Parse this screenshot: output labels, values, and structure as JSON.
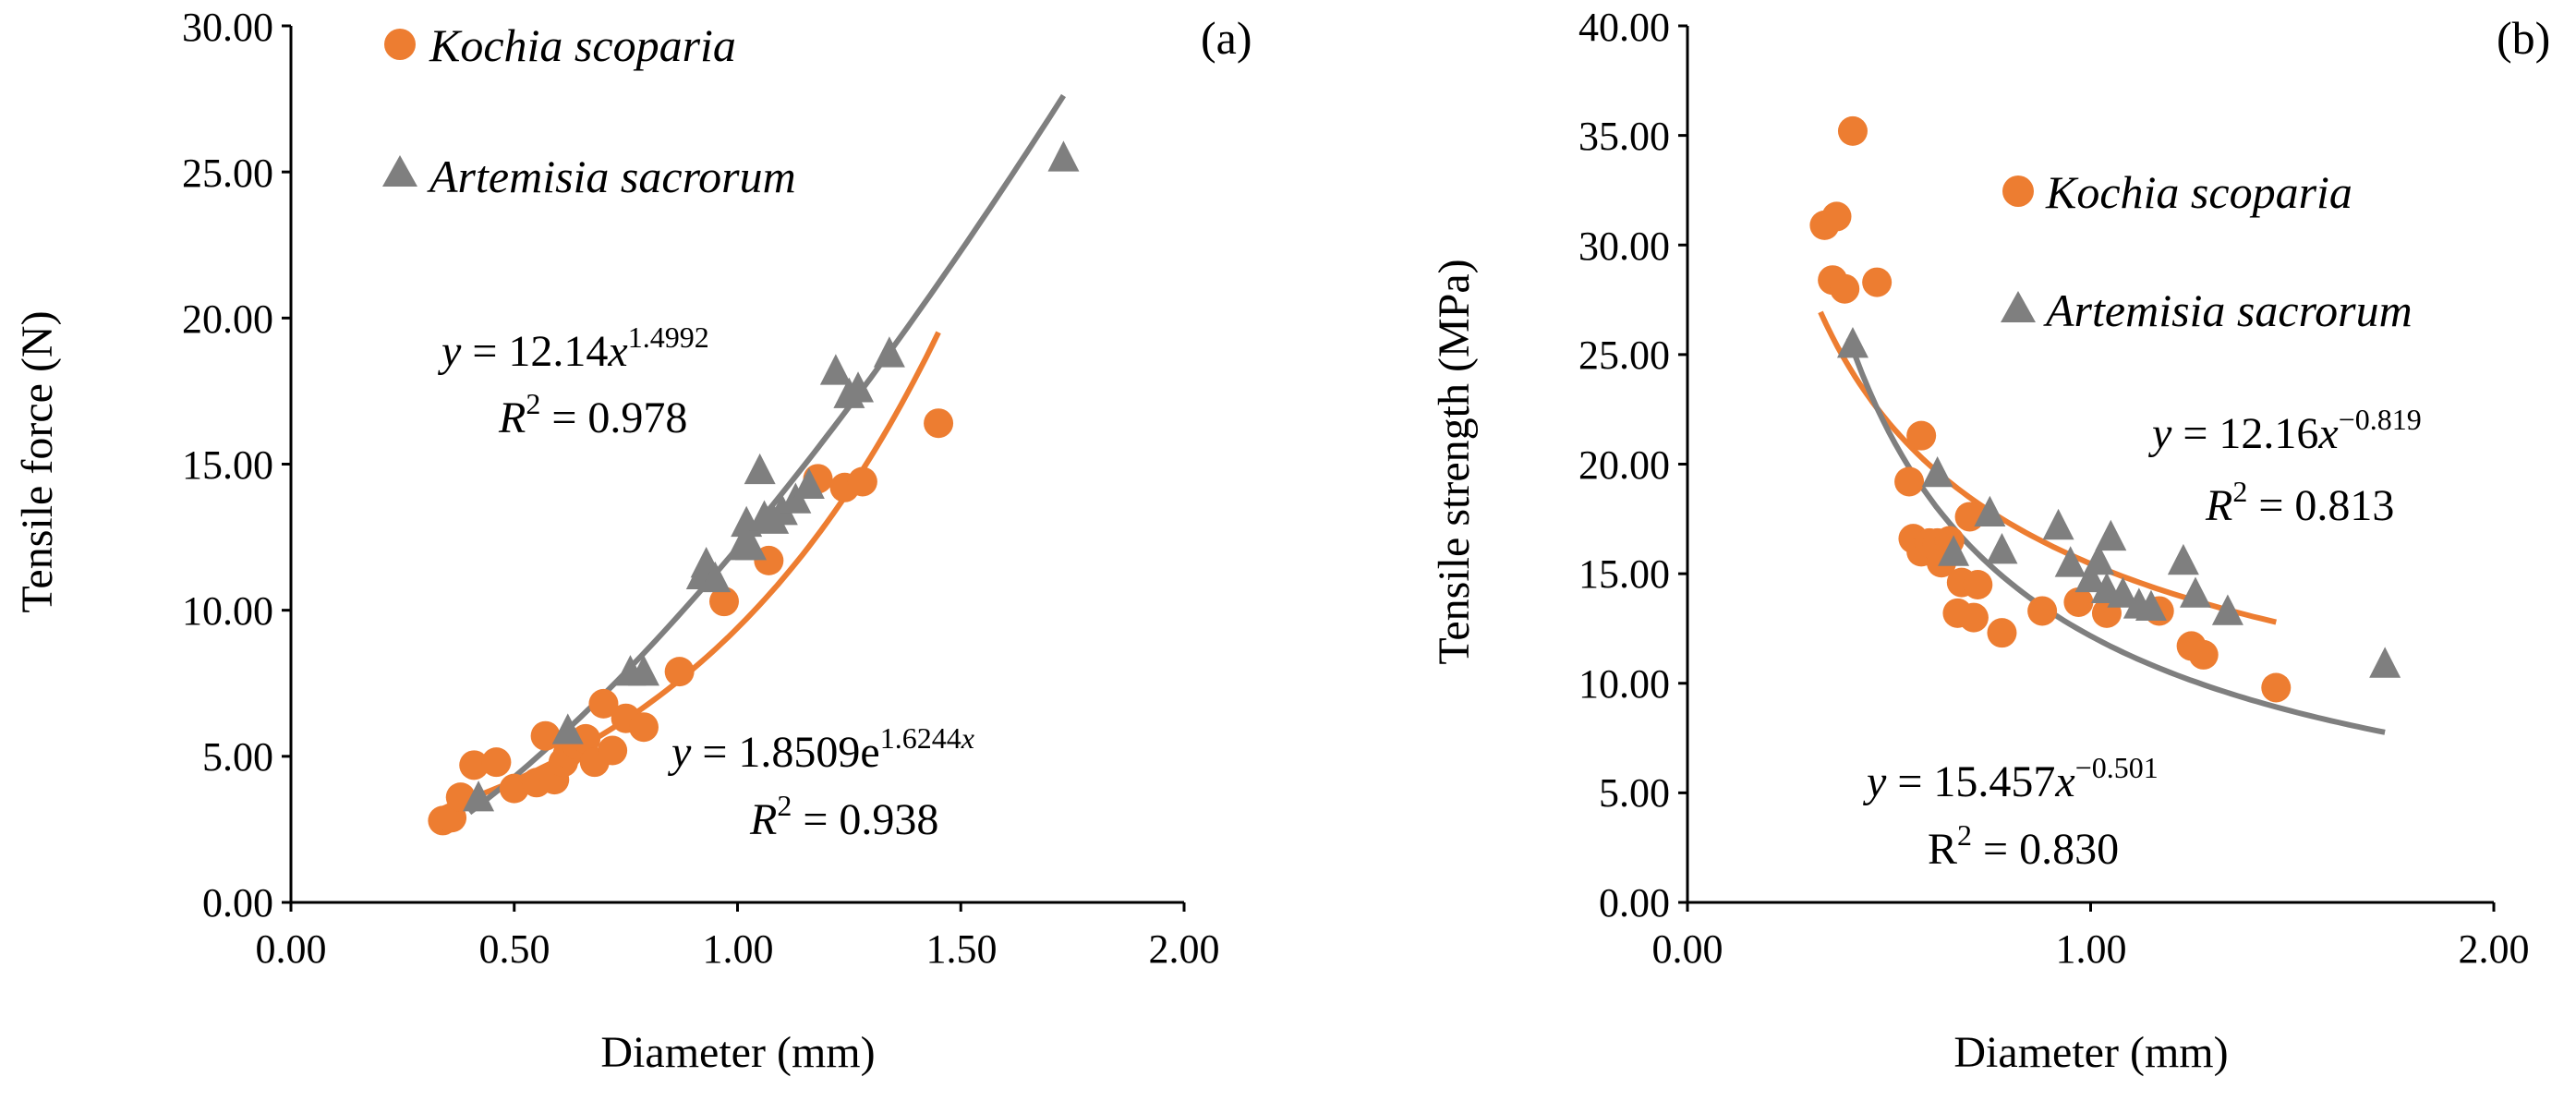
{
  "colors": {
    "orange": "#ED7D31",
    "gray": "#7F7F7F",
    "axis": "#000000",
    "background": "#FFFFFF"
  },
  "chart_data": [
    {
      "type": "scatter",
      "panel_label": "(a)",
      "xlabel": "Diameter (mm)",
      "ylabel": "Tensile force (N)",
      "xlim": [
        0,
        2
      ],
      "ylim": [
        0,
        30
      ],
      "xticks": [
        "0.00",
        "0.50",
        "1.00",
        "1.50",
        "2.00"
      ],
      "yticks": [
        "0.00",
        "5.00",
        "10.00",
        "15.00",
        "20.00",
        "25.00",
        "30.00"
      ],
      "legend_position": "top-left",
      "series": [
        {
          "name": "Kochia scoparia",
          "marker": "circle",
          "color": "#ED7D31",
          "points": [
            [
              0.34,
              2.8
            ],
            [
              0.36,
              2.9
            ],
            [
              0.38,
              3.6
            ],
            [
              0.41,
              4.7
            ],
            [
              0.46,
              4.8
            ],
            [
              0.5,
              3.9
            ],
            [
              0.55,
              4.1
            ],
            [
              0.57,
              5.7
            ],
            [
              0.59,
              4.2
            ],
            [
              0.61,
              4.8
            ],
            [
              0.62,
              5.1
            ],
            [
              0.64,
              5.4
            ],
            [
              0.66,
              5.6
            ],
            [
              0.68,
              4.8
            ],
            [
              0.7,
              6.8
            ],
            [
              0.72,
              5.2
            ],
            [
              0.75,
              6.3
            ],
            [
              0.79,
              6.0
            ],
            [
              0.87,
              7.9
            ],
            [
              0.97,
              10.3
            ],
            [
              1.07,
              11.7
            ],
            [
              1.18,
              14.5
            ],
            [
              1.24,
              14.2
            ],
            [
              1.28,
              14.4
            ],
            [
              1.45,
              16.4
            ]
          ],
          "fit": {
            "kind": "exponential",
            "a": 1.8509,
            "b": 1.6244,
            "x_range": [
              0.34,
              1.45
            ]
          },
          "equation": {
            "y_var": "y",
            "eq": " = 1.8509e",
            "exponent": "1.6244",
            "exp_var": "x",
            "r_label": "R",
            "r_sup": "2",
            "r_value": " = 0.938"
          }
        },
        {
          "name": "Artemisia sacrorum",
          "marker": "triangle",
          "color": "#7F7F7F",
          "points": [
            [
              0.42,
              3.6
            ],
            [
              0.62,
              5.9
            ],
            [
              0.76,
              7.9
            ],
            [
              0.79,
              7.9
            ],
            [
              0.92,
              11.2
            ],
            [
              0.93,
              11.6
            ],
            [
              0.95,
              11.1
            ],
            [
              1.01,
              12.2
            ],
            [
              1.02,
              13.0
            ],
            [
              1.03,
              12.2
            ],
            [
              1.05,
              14.8
            ],
            [
              1.06,
              13.2
            ],
            [
              1.08,
              13.1
            ],
            [
              1.1,
              13.4
            ],
            [
              1.13,
              13.8
            ],
            [
              1.16,
              14.3
            ],
            [
              1.22,
              18.2
            ],
            [
              1.25,
              17.4
            ],
            [
              1.27,
              17.6
            ],
            [
              1.34,
              18.8
            ],
            [
              1.73,
              25.5
            ]
          ],
          "fit": {
            "kind": "power",
            "a": 12.14,
            "b": 1.4992,
            "x_range": [
              0.4,
              1.73
            ]
          },
          "equation": {
            "y_var": "y",
            "eq": " = 12.14",
            "x_var": "x",
            "exponent": "1.4992",
            "r_label": "R",
            "r_sup": "2",
            "r_value": " = 0.978"
          }
        }
      ]
    },
    {
      "type": "scatter",
      "panel_label": "(b)",
      "xlabel": "Diameter (mm)",
      "ylabel": "Tensile strength (MPa)",
      "xlim": [
        0,
        2
      ],
      "ylim": [
        0,
        40
      ],
      "xticks": [
        "0.00",
        "1.00",
        "2.00"
      ],
      "yticks": [
        "0.00",
        "5.00",
        "10.00",
        "15.00",
        "20.00",
        "25.00",
        "30.00",
        "35.00",
        "40.00"
      ],
      "legend_position": "top-right",
      "series": [
        {
          "name": "Kochia scoparia",
          "marker": "circle",
          "color": "#ED7D31",
          "points": [
            [
              0.34,
              30.9
            ],
            [
              0.36,
              28.4
            ],
            [
              0.37,
              31.3
            ],
            [
              0.39,
              28.0
            ],
            [
              0.41,
              35.2
            ],
            [
              0.47,
              28.3
            ],
            [
              0.55,
              19.2
            ],
            [
              0.56,
              16.6
            ],
            [
              0.58,
              21.3
            ],
            [
              0.58,
              16.0
            ],
            [
              0.6,
              16.4
            ],
            [
              0.62,
              16.4
            ],
            [
              0.63,
              15.5
            ],
            [
              0.65,
              16.5
            ],
            [
              0.67,
              13.2
            ],
            [
              0.68,
              14.6
            ],
            [
              0.7,
              17.6
            ],
            [
              0.71,
              13.0
            ],
            [
              0.72,
              14.5
            ],
            [
              0.78,
              12.3
            ],
            [
              0.88,
              13.3
            ],
            [
              0.97,
              13.7
            ],
            [
              1.04,
              13.2
            ],
            [
              1.17,
              13.3
            ],
            [
              1.25,
              11.7
            ],
            [
              1.28,
              11.3
            ],
            [
              1.46,
              9.8
            ]
          ],
          "fit": {
            "kind": "power",
            "a": 15.457,
            "b": -0.501,
            "x_range": [
              0.33,
              1.46
            ]
          },
          "equation": {
            "y_var": "y",
            "eq": " = 15.457",
            "x_var": "x",
            "exponent": "−0.501",
            "r_label": "R",
            "r_sup": "2",
            "r_value": " = 0.830"
          }
        },
        {
          "name": "Artemisia sacrorum",
          "marker": "triangle",
          "color": "#7F7F7F",
          "points": [
            [
              0.41,
              25.5
            ],
            [
              0.62,
              19.6
            ],
            [
              0.66,
              16.0
            ],
            [
              0.75,
              17.8
            ],
            [
              0.78,
              16.1
            ],
            [
              0.92,
              17.2
            ],
            [
              0.95,
              15.5
            ],
            [
              1.0,
              14.8
            ],
            [
              1.02,
              15.6
            ],
            [
              1.04,
              14.3
            ],
            [
              1.05,
              16.7
            ],
            [
              1.08,
              14.1
            ],
            [
              1.12,
              13.6
            ],
            [
              1.15,
              13.5
            ],
            [
              1.23,
              15.6
            ],
            [
              1.26,
              14.1
            ],
            [
              1.34,
              13.3
            ],
            [
              1.73,
              10.9
            ]
          ],
          "fit": {
            "kind": "power",
            "a": 12.16,
            "b": -0.819,
            "x_range": [
              0.4,
              1.73
            ]
          },
          "equation": {
            "y_var": "y",
            "eq": " = 12.16",
            "x_var": "x",
            "exponent": "−0.819",
            "r_label": "R",
            "r_sup": "2",
            "r_value": " = 0.813"
          }
        }
      ]
    }
  ]
}
